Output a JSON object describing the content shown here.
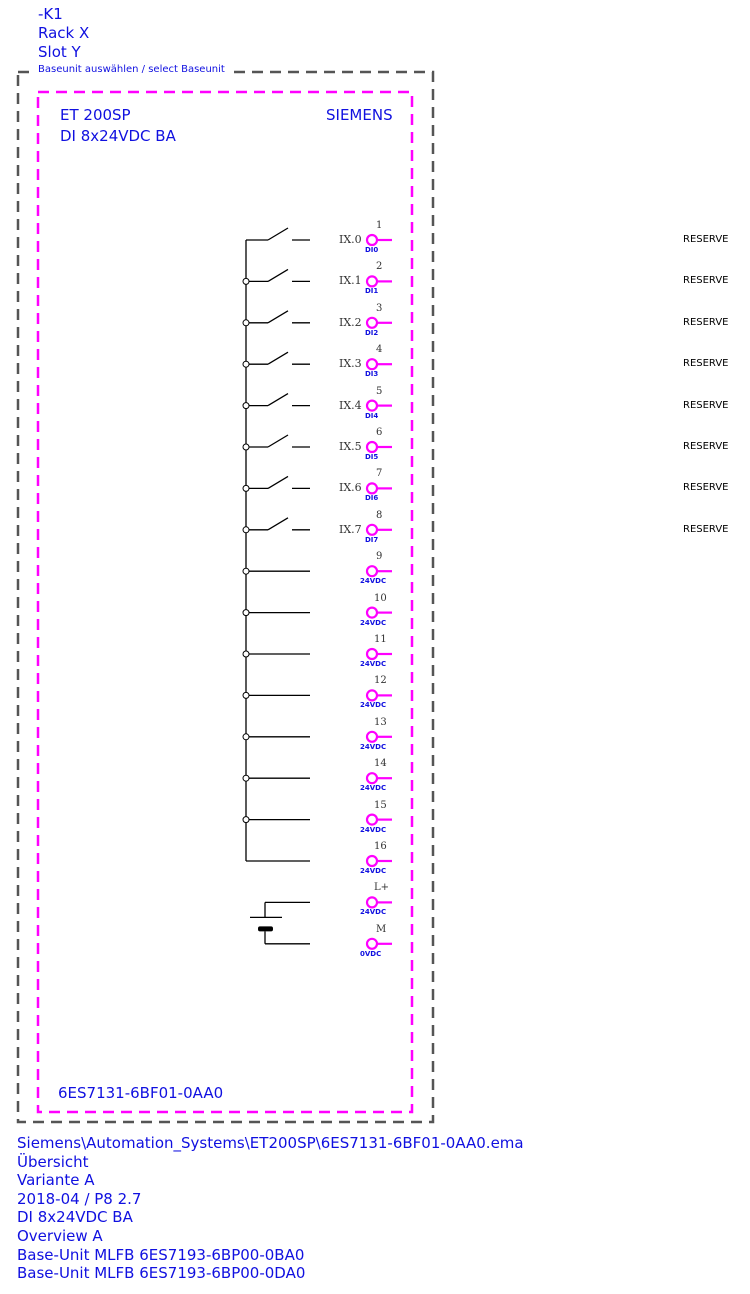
{
  "header": {
    "lines": [
      "-K1",
      "Rack X",
      "Slot Y"
    ]
  },
  "baseunit_label": "Baseunit auswählen / select Baseunit",
  "module": {
    "family": "ET 200SP",
    "name": "DI 8x24VDC BA",
    "brand": "SIEMENS",
    "order_number": "6ES7131-6BF01-0AA0"
  },
  "channels": [
    {
      "pin": "1",
      "address": "IX.0",
      "signal": "DI0",
      "reserve": "RESERVE"
    },
    {
      "pin": "2",
      "address": "IX.1",
      "signal": "DI1",
      "reserve": "RESERVE"
    },
    {
      "pin": "3",
      "address": "IX.2",
      "signal": "DI2",
      "reserve": "RESERVE"
    },
    {
      "pin": "4",
      "address": "IX.3",
      "signal": "DI3",
      "reserve": "RESERVE"
    },
    {
      "pin": "5",
      "address": "IX.4",
      "signal": "DI4",
      "reserve": "RESERVE"
    },
    {
      "pin": "6",
      "address": "IX.5",
      "signal": "DI5",
      "reserve": "RESERVE"
    },
    {
      "pin": "7",
      "address": "IX.6",
      "signal": "DI6",
      "reserve": "RESERVE"
    },
    {
      "pin": "8",
      "address": "IX.7",
      "signal": "DI7",
      "reserve": "RESERVE"
    }
  ],
  "supply_terminals": [
    {
      "pin": "9",
      "signal": "24VDC"
    },
    {
      "pin": "10",
      "signal": "24VDC"
    },
    {
      "pin": "11",
      "signal": "24VDC"
    },
    {
      "pin": "12",
      "signal": "24VDC"
    },
    {
      "pin": "13",
      "signal": "24VDC"
    },
    {
      "pin": "14",
      "signal": "24VDC"
    },
    {
      "pin": "15",
      "signal": "24VDC"
    },
    {
      "pin": "16",
      "signal": "24VDC"
    }
  ],
  "power_terminals": [
    {
      "pin": "L+",
      "signal": "24VDC"
    },
    {
      "pin": "M",
      "signal": "0VDC"
    }
  ],
  "footer": {
    "lines": [
      "Siemens\\Automation_Systems\\ET200SP\\6ES7131-6BF01-0AA0.ema",
      "Übersicht",
      "Variante A",
      "2018-04 / P8 2.7",
      "DI 8x24VDC BA",
      "Overview A",
      "Base-Unit MLFB 6ES7193-6BP00-0BA0",
      "Base-Unit MLFB 6ES7193-6BP00-0DA0"
    ]
  },
  "colors": {
    "text": "#1010e0",
    "module_border": "#ff00ff",
    "baseunit_border": "#555555",
    "terminal": "#ff00ff",
    "wiring": "#000000"
  }
}
